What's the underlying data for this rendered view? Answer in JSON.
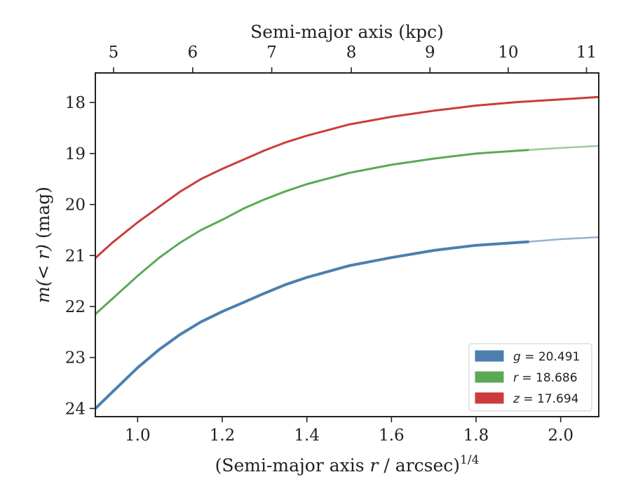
{
  "chart_data": {
    "type": "line",
    "xlabel_prefix": "(Semi-major axis ",
    "xlabel_var": "r",
    "xlabel_suffix": " / arcsec)",
    "xlabel_sup": "1/4",
    "ylabel_var": "m(< r)",
    "ylabel_suffix": " (mag)",
    "top_xlabel": "Semi-major axis (kpc)",
    "xlim": [
      0.9,
      2.09
    ],
    "ylim": [
      24.16,
      17.42
    ],
    "x_ticks": [
      1.0,
      1.2,
      1.4,
      1.6,
      1.8,
      2.0
    ],
    "x_tick_labels": [
      "1.0",
      "1.2",
      "1.4",
      "1.6",
      "1.8",
      "2.0"
    ],
    "y_ticks": [
      18,
      19,
      20,
      21,
      22,
      23,
      24
    ],
    "y_tick_labels": [
      "18",
      "19",
      "20",
      "21",
      "22",
      "23",
      "24"
    ],
    "top_ticks_kpc": [
      5,
      6,
      7,
      8,
      9,
      10,
      11
    ],
    "top_tick_labels": [
      "5",
      "6",
      "7",
      "8",
      "9",
      "10",
      "11"
    ],
    "top_tick_x_positions": [
      0.943,
      1.13,
      1.317,
      1.505,
      1.691,
      1.876,
      2.061
    ],
    "series": [
      {
        "name": "g",
        "legend_var": "g",
        "legend_value": "= 20.491",
        "color": "#4c7fae",
        "solid_until": 1.925,
        "points": [
          [
            0.9,
            24.0
          ],
          [
            0.94,
            23.68
          ],
          [
            1.0,
            23.2
          ],
          [
            1.05,
            22.85
          ],
          [
            1.1,
            22.55
          ],
          [
            1.15,
            22.3
          ],
          [
            1.2,
            22.1
          ],
          [
            1.25,
            21.92
          ],
          [
            1.3,
            21.74
          ],
          [
            1.35,
            21.57
          ],
          [
            1.4,
            21.43
          ],
          [
            1.5,
            21.2
          ],
          [
            1.6,
            21.04
          ],
          [
            1.7,
            20.9
          ],
          [
            1.8,
            20.8
          ],
          [
            1.925,
            20.73
          ],
          [
            2.0,
            20.68
          ],
          [
            2.09,
            20.64
          ]
        ]
      },
      {
        "name": "r",
        "legend_var": "r",
        "legend_value": "= 18.686",
        "color": "#5aaa55",
        "solid_until": 1.925,
        "points": [
          [
            0.9,
            22.15
          ],
          [
            0.94,
            21.85
          ],
          [
            1.0,
            21.4
          ],
          [
            1.05,
            21.05
          ],
          [
            1.1,
            20.75
          ],
          [
            1.15,
            20.5
          ],
          [
            1.2,
            20.3
          ],
          [
            1.25,
            20.08
          ],
          [
            1.3,
            19.9
          ],
          [
            1.35,
            19.74
          ],
          [
            1.4,
            19.6
          ],
          [
            1.5,
            19.38
          ],
          [
            1.6,
            19.22
          ],
          [
            1.7,
            19.1
          ],
          [
            1.8,
            19.0
          ],
          [
            1.925,
            18.93
          ],
          [
            2.0,
            18.89
          ],
          [
            2.09,
            18.85
          ]
        ]
      },
      {
        "name": "z",
        "legend_var": "z",
        "legend_value": "= 17.694",
        "color": "#cc3c3c",
        "solid_until": 2.09,
        "points": [
          [
            0.9,
            21.05
          ],
          [
            0.94,
            20.75
          ],
          [
            1.0,
            20.35
          ],
          [
            1.05,
            20.05
          ],
          [
            1.1,
            19.75
          ],
          [
            1.15,
            19.5
          ],
          [
            1.2,
            19.3
          ],
          [
            1.25,
            19.12
          ],
          [
            1.3,
            18.94
          ],
          [
            1.35,
            18.78
          ],
          [
            1.4,
            18.65
          ],
          [
            1.5,
            18.43
          ],
          [
            1.6,
            18.28
          ],
          [
            1.7,
            18.16
          ],
          [
            1.8,
            18.06
          ],
          [
            1.9,
            17.99
          ],
          [
            2.0,
            17.94
          ],
          [
            2.09,
            17.89
          ]
        ]
      }
    ],
    "legend_position": "lower-right",
    "grid": false
  }
}
